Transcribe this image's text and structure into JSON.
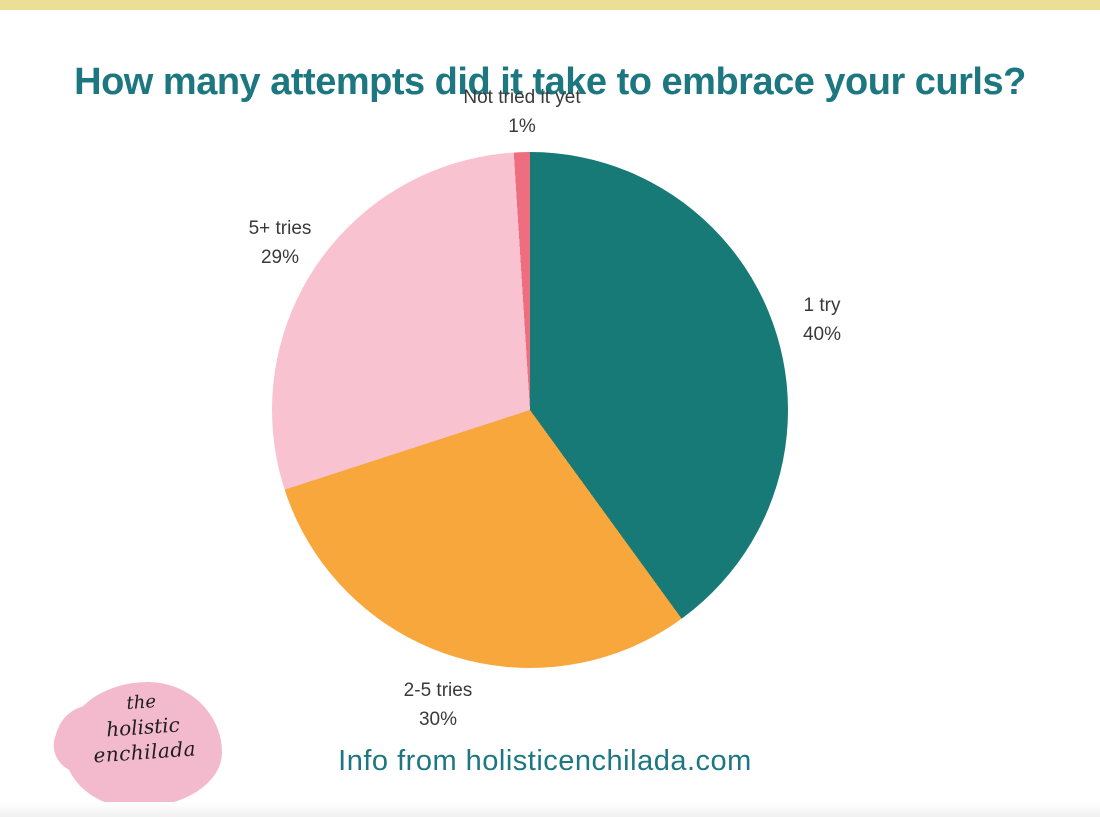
{
  "page": {
    "title": "How many attempts did it take to embrace your curls?",
    "footer_note": "Info from holisticenchilada.com",
    "accent_teal": "#1d7780",
    "top_band_color": "#ebdf96"
  },
  "logo": {
    "line1": "the",
    "line2": "holistic",
    "line3": "enchilada",
    "blob_color": "#f3b9cd"
  },
  "chart_data": {
    "type": "pie",
    "title": "How many attempts did it take to embrace your curls?",
    "categories": [
      "1 try",
      "2-5 tries",
      "5+ tries",
      "Not tried it yet"
    ],
    "values": [
      40,
      30,
      29,
      1
    ],
    "pct_labels": [
      "40%",
      "30%",
      "29%",
      "1%"
    ],
    "colors": [
      "#177a77",
      "#f8a73c",
      "#f9c2d1",
      "#ee6e80"
    ],
    "start_angle_deg": 0,
    "direction": "clockwise",
    "legend_position": "none",
    "labels_outside": true
  }
}
